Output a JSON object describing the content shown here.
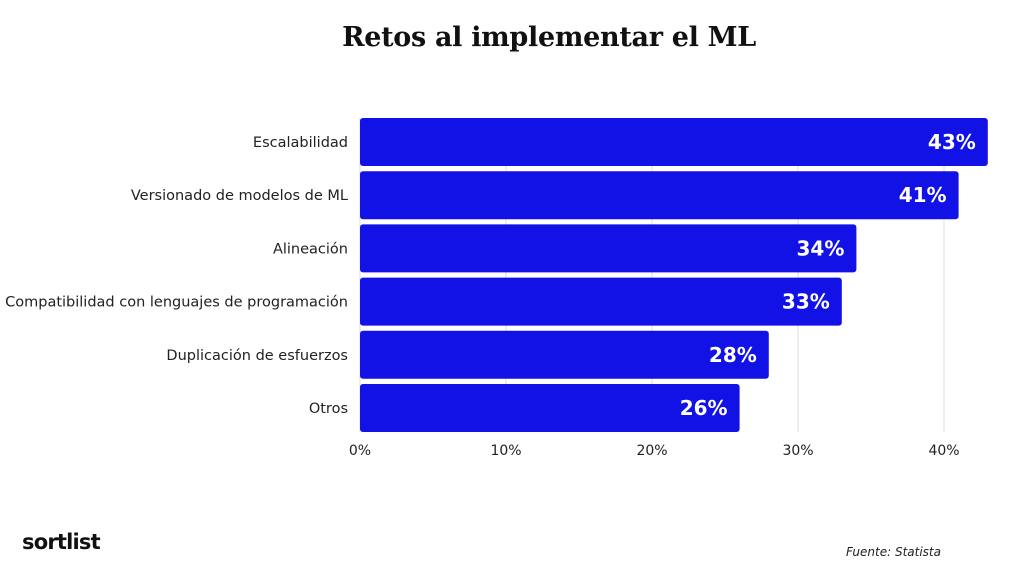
{
  "chart_data": {
    "type": "bar",
    "orientation": "horizontal",
    "title": "Retos al implementar el ML",
    "categories": [
      "Escalabilidad",
      "Versionado de modelos de ML",
      "Alineación",
      "Compatibilidad con lenguajes de programación",
      "Duplicación de esfuerzos",
      "Otros"
    ],
    "values": [
      43,
      41,
      34,
      33,
      28,
      26
    ],
    "value_labels": [
      "43%",
      "41%",
      "34%",
      "33%",
      "28%",
      "26%"
    ],
    "xlim": [
      0,
      43
    ],
    "x_ticks": [
      0,
      10,
      20,
      30,
      40
    ],
    "x_tick_labels": [
      "0%",
      "10%",
      "20%",
      "30%",
      "40%"
    ],
    "grid": true,
    "bar_color": "#1212e6",
    "grid_color": "#dddddd"
  },
  "brand": {
    "logo_text": "sortlist"
  },
  "footer": {
    "source": "Fuente: Statista"
  }
}
